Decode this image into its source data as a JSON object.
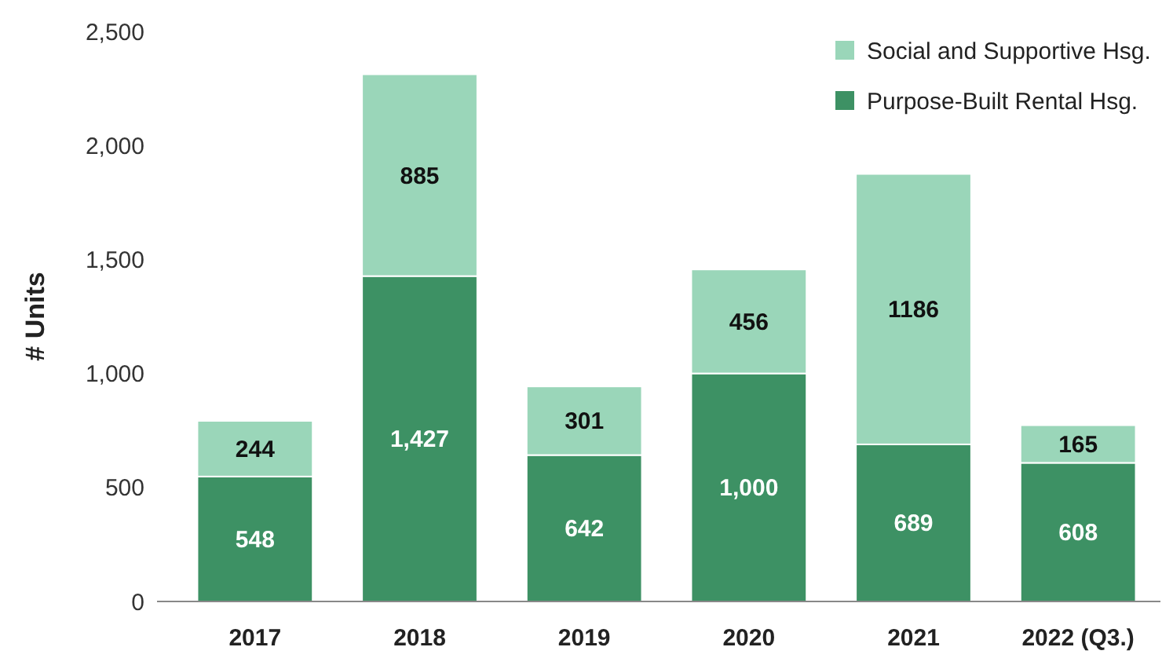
{
  "chart_data": {
    "type": "bar",
    "stacked": true,
    "ylabel": "# Units",
    "categories": [
      "2017",
      "2018",
      "2019",
      "2020",
      "2021",
      "2022 (Q3.)"
    ],
    "series": [
      {
        "name": "Purpose-Built Rental Hsg.",
        "color": "#3d9164",
        "values": [
          548,
          1427,
          642,
          1000,
          689,
          608
        ],
        "value_labels": [
          "548",
          "1,427",
          "642",
          "1,000",
          "689",
          "608"
        ]
      },
      {
        "name": "Social and Supportive Hsg.",
        "color": "#9ad6b9",
        "values": [
          244,
          885,
          301,
          456,
          1186,
          165
        ],
        "value_labels": [
          "244",
          "885",
          "301",
          "456",
          "1186",
          "165"
        ]
      }
    ],
    "ylim": [
      0,
      2500
    ],
    "yticks": [
      {
        "value": 0,
        "label": "0"
      },
      {
        "value": 500,
        "label": "500"
      },
      {
        "value": 1000,
        "label": "1,000"
      },
      {
        "value": 1500,
        "label": "1,500"
      },
      {
        "value": 2000,
        "label": "2,000"
      },
      {
        "value": 2500,
        "label": "2,500"
      }
    ],
    "grid": false,
    "legend": "top right"
  }
}
